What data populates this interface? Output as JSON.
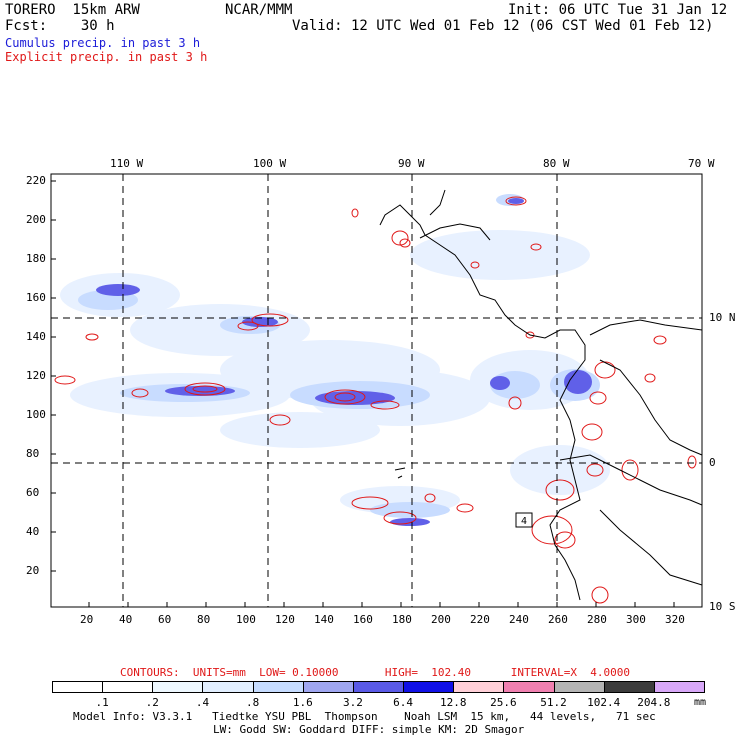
{
  "header": {
    "model": "TORERO  15km ARW",
    "org": "NCAR/MMM",
    "init": "Init: 06 UTC Tue 31 Jan 12",
    "fcst": "Fcst:    30 h",
    "valid": "Valid: 12 UTC Wed 01 Feb 12 (06 CST Wed 01 Feb 12)",
    "line_blue": "Cumulus precip. in past 3 h",
    "line_red": "Explicit precip. in past 3 h"
  },
  "map": {
    "top_labels": [
      "110 W",
      "100 W",
      "90 W",
      "80 W",
      "70 W"
    ],
    "right_labels": [
      "10 N",
      "0",
      "10 S"
    ],
    "y_ticks": [
      "220",
      "200",
      "180",
      "160",
      "140",
      "120",
      "100",
      "80",
      "60",
      "40",
      "20"
    ],
    "x_ticks": [
      "20",
      "40",
      "60",
      "80",
      "100",
      "120",
      "140",
      "160",
      "180",
      "200",
      "220",
      "240",
      "260",
      "280",
      "300",
      "320"
    ],
    "inline_label": "4",
    "colors": {
      "coast": "#000000",
      "cumulus_light": "#e6f0ff",
      "cumulus_mid": "#9aa8f0",
      "cumulus_dark": "#2a2ad8",
      "explicit": "#e01818"
    }
  },
  "footer": {
    "contours": "CONTOURS:  UNITS=mm  LOW= 0.10000       HIGH=  102.40      INTERVAL=X  4.0000",
    "legend_values": [
      ".1",
      ".2",
      ".4",
      ".8",
      "1.6",
      "3.2",
      "6.4",
      "12.8",
      "25.6",
      "51.2",
      "102.4",
      "204.8"
    ],
    "legend_unit": "mm",
    "legend_colors": [
      "#ffffff",
      "#ffffff",
      "#eef8ff",
      "#e2efff",
      "#c6dcff",
      "#9fa6f0",
      "#5a5ae6",
      "#1010e6",
      "#ffd0d8",
      "#f080b0",
      "#b4b4b4",
      "#3c3c3c",
      "#d8a8f8"
    ],
    "info1": "Model Info: V3.3.1   Tiedtke YSU PBL  Thompson    Noah LSM  15 km,   44 levels,   71 sec",
    "info2": "LW: Godd SW: Goddard DIFF: simple KM: 2D Smagor"
  }
}
